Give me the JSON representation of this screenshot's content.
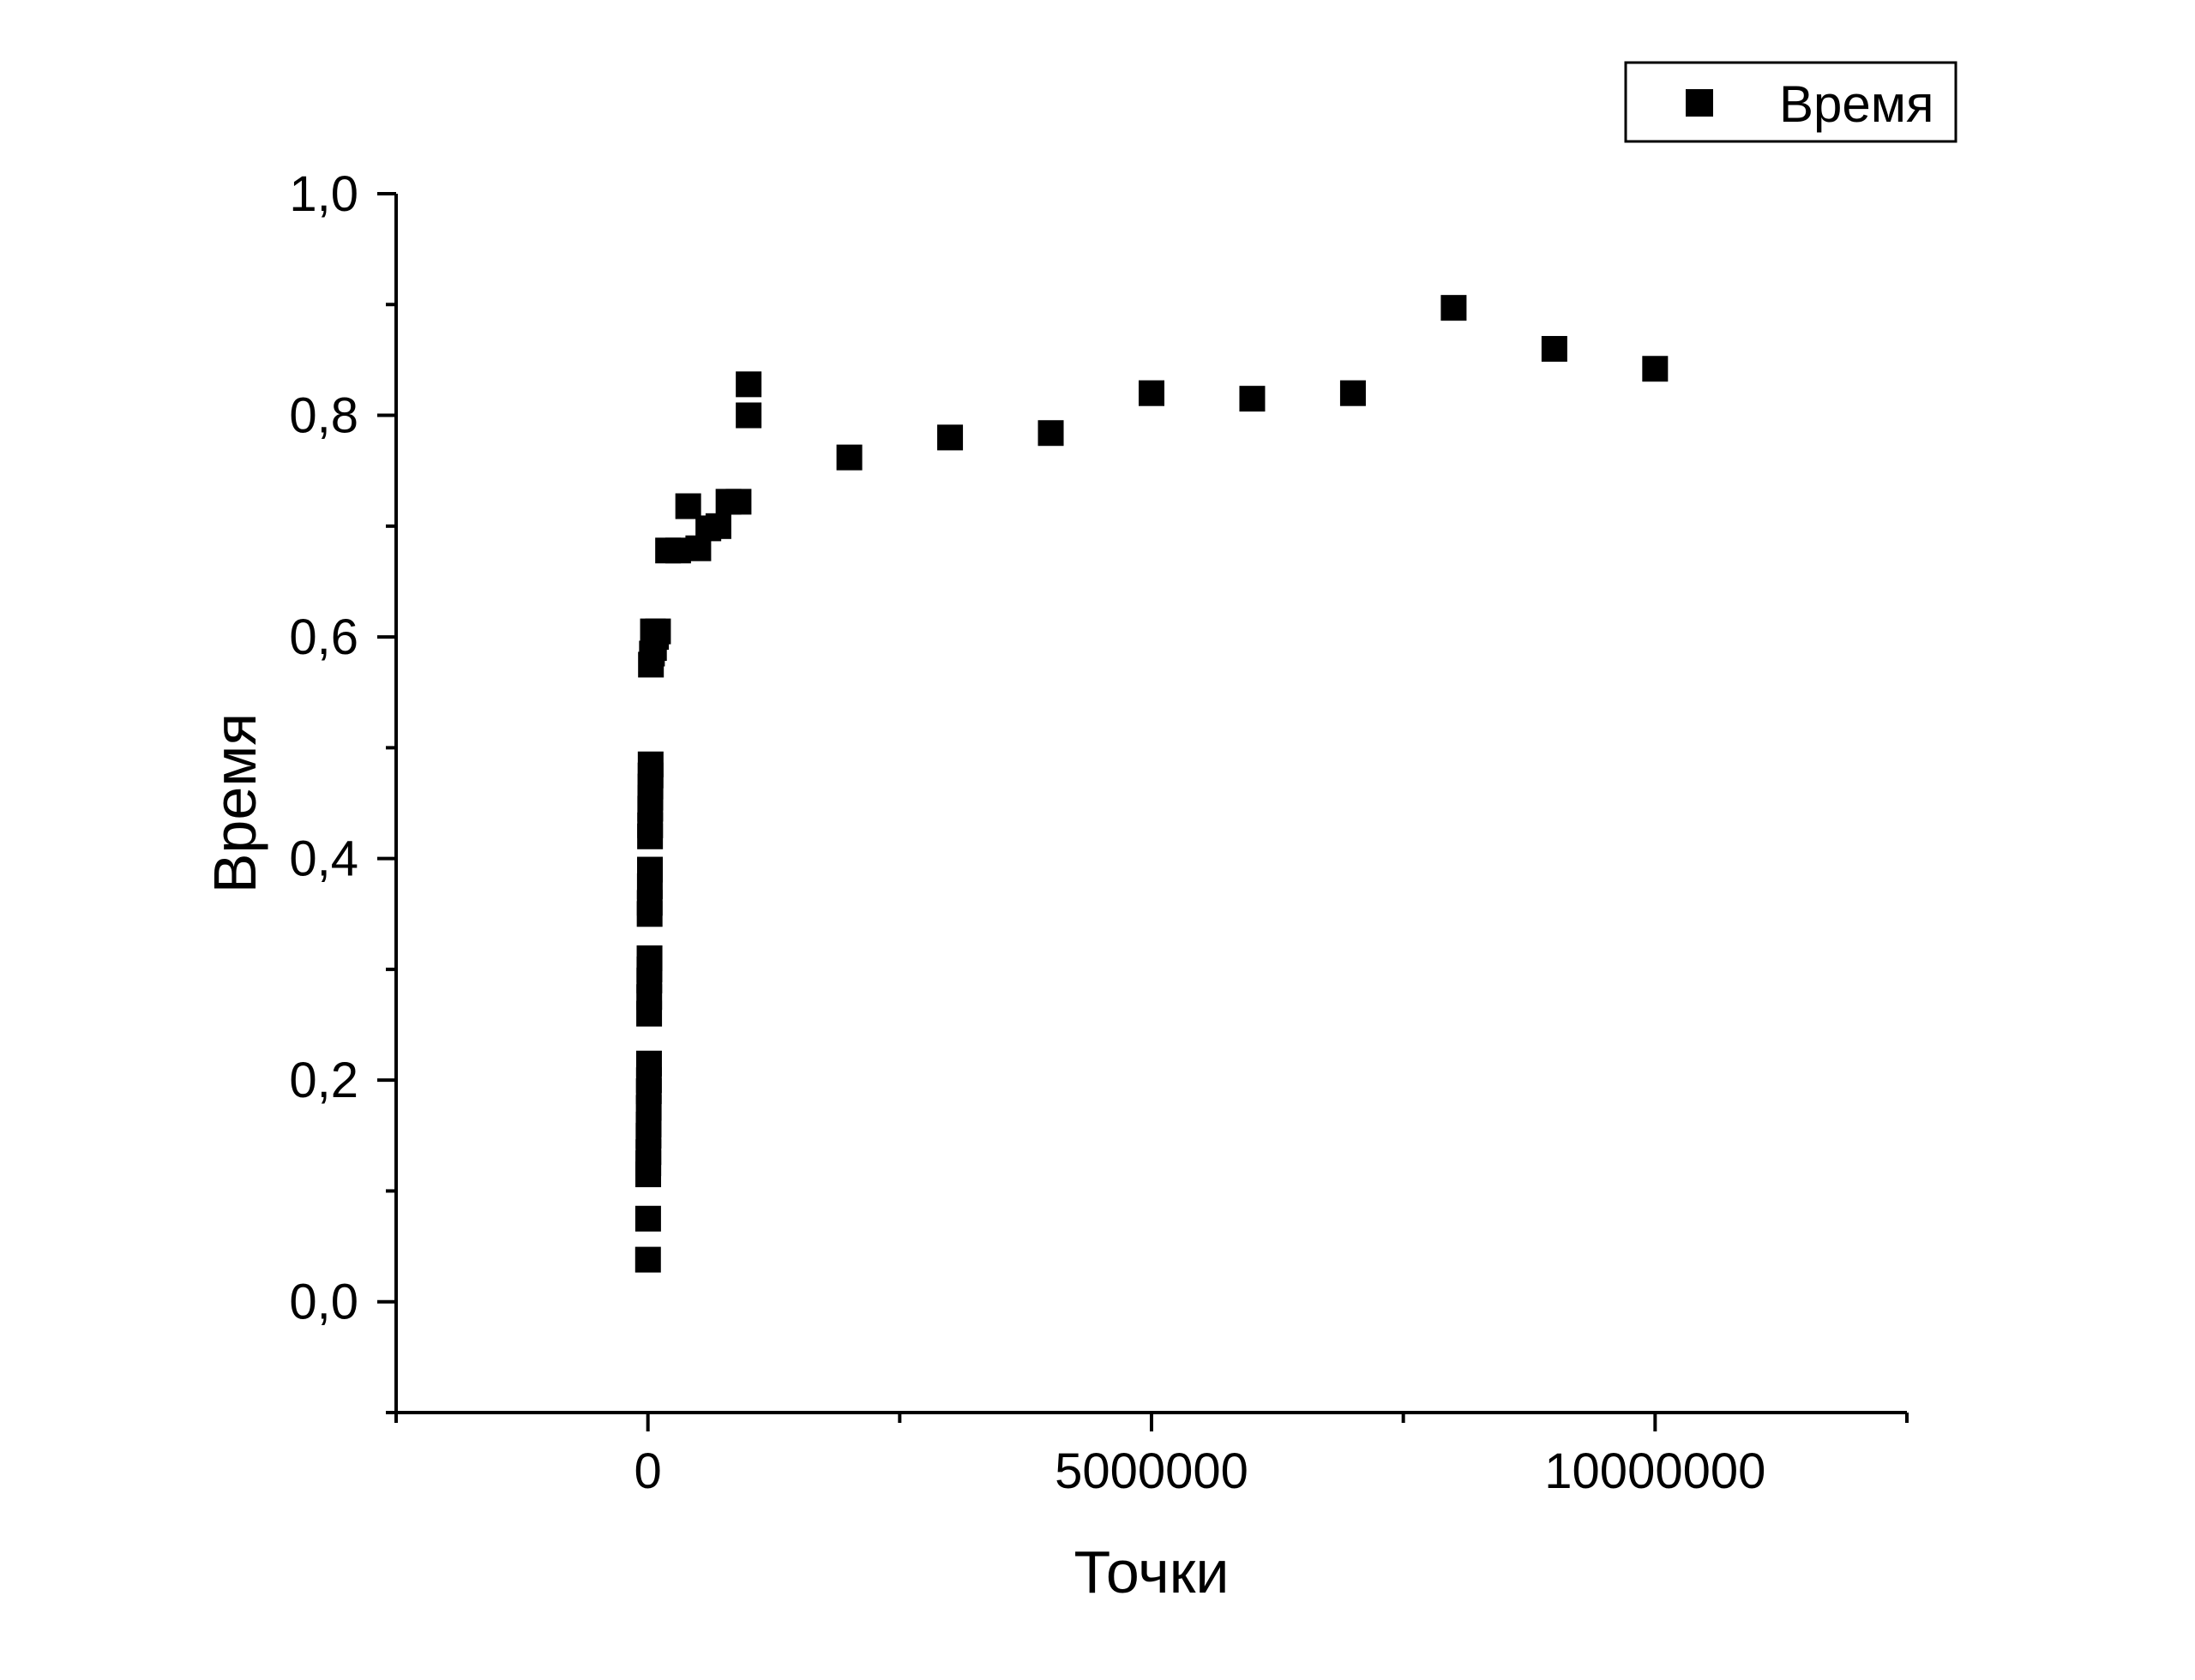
{
  "chart_data": {
    "type": "scatter",
    "xlabel": "Точки",
    "ylabel": "Время",
    "xlim": [
      -2500000,
      12500000
    ],
    "ylim": [
      -0.1,
      1.0
    ],
    "x_ticks": [
      {
        "value": 0,
        "label": "0"
      },
      {
        "value": 5000000,
        "label": "5000000"
      },
      {
        "value": 10000000,
        "label": "10000000"
      }
    ],
    "x_minor_ticks": [
      -2500000,
      2500000,
      7500000,
      12500000
    ],
    "y_ticks": [
      {
        "value": 0.0,
        "label": "0,0"
      },
      {
        "value": 0.2,
        "label": "0,2"
      },
      {
        "value": 0.4,
        "label": "0,4"
      },
      {
        "value": 0.6,
        "label": "0,6"
      },
      {
        "value": 0.8,
        "label": "0,8"
      },
      {
        "value": 1.0,
        "label": "1,0"
      }
    ],
    "y_minor_ticks": [
      -0.1,
      0.1,
      0.3,
      0.5,
      0.7,
      0.9
    ],
    "grid": false,
    "legend": {
      "position": "top-right",
      "label": "Время"
    },
    "series": [
      {
        "name": "Время",
        "color": "#000000",
        "marker": "square",
        "points": [
          [
            1000,
            0.038
          ],
          [
            2000,
            0.075
          ],
          [
            3000,
            0.115
          ],
          [
            4000,
            0.125
          ],
          [
            5000,
            0.135
          ],
          [
            6000,
            0.15
          ],
          [
            7000,
            0.16
          ],
          [
            8000,
            0.175
          ],
          [
            9000,
            0.19
          ],
          [
            10000,
            0.2
          ],
          [
            11000,
            0.215
          ],
          [
            12000,
            0.26
          ],
          [
            13000,
            0.275
          ],
          [
            14000,
            0.29
          ],
          [
            15000,
            0.3
          ],
          [
            16000,
            0.31
          ],
          [
            17000,
            0.35
          ],
          [
            18000,
            0.36
          ],
          [
            19000,
            0.375
          ],
          [
            20000,
            0.39
          ],
          [
            21000,
            0.42
          ],
          [
            22000,
            0.43
          ],
          [
            23000,
            0.445
          ],
          [
            24000,
            0.455
          ],
          [
            25000,
            0.465
          ],
          [
            26000,
            0.475
          ],
          [
            27000,
            0.485
          ],
          [
            30000,
            0.575
          ],
          [
            40000,
            0.585
          ],
          [
            50000,
            0.605
          ],
          [
            60000,
            0.59
          ],
          [
            80000,
            0.6
          ],
          [
            100000,
            0.605
          ],
          [
            200000,
            0.678
          ],
          [
            300000,
            0.678
          ],
          [
            400000,
            0.718
          ],
          [
            500000,
            0.68
          ],
          [
            600000,
            0.698
          ],
          [
            700000,
            0.7
          ],
          [
            800000,
            0.722
          ],
          [
            900000,
            0.722
          ],
          [
            1000000,
            0.8
          ],
          [
            1000000,
            0.828
          ],
          [
            2000000,
            0.762
          ],
          [
            3000000,
            0.78
          ],
          [
            4000000,
            0.784
          ],
          [
            5000000,
            0.82
          ],
          [
            6000000,
            0.815
          ],
          [
            7000000,
            0.82
          ],
          [
            8000000,
            0.897
          ],
          [
            9000000,
            0.86
          ],
          [
            10000000,
            0.842
          ]
        ]
      }
    ]
  }
}
